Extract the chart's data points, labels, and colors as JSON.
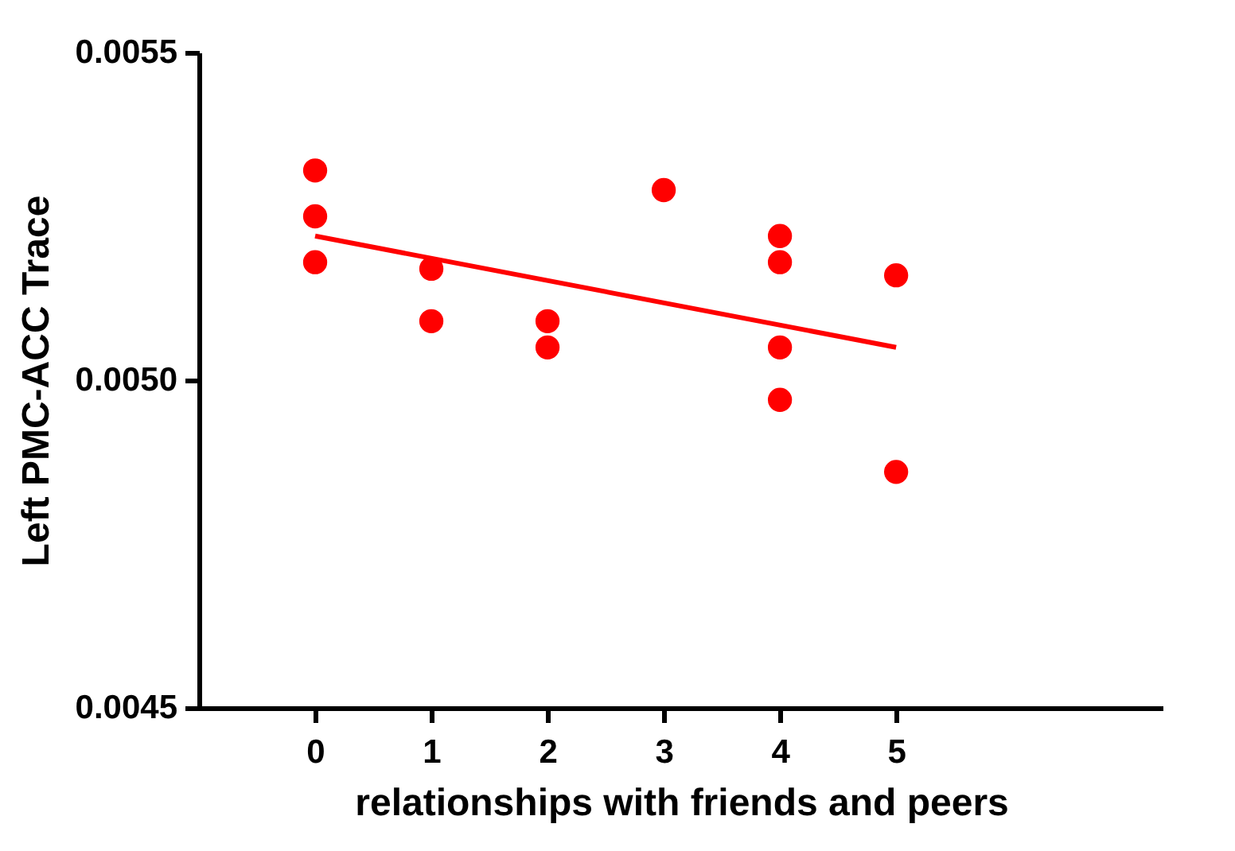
{
  "chart_data": {
    "type": "scatter",
    "xlabel": "relationships with friends and peers",
    "ylabel": "Left PMC-ACC Trace",
    "xlim": [
      -1,
      7.3
    ],
    "xticks": [
      0,
      1,
      2,
      3,
      4,
      5
    ],
    "ylim": [
      0.0045,
      0.0055
    ],
    "yticks": [
      {
        "value": 0.0045,
        "label": "0.0045"
      },
      {
        "value": 0.005,
        "label": "0.0050"
      },
      {
        "value": 0.0055,
        "label": "0.0055"
      }
    ],
    "grid": false,
    "line_style": "solid",
    "series": [
      {
        "color": "#ff0000",
        "marker": "circle",
        "x": [
          0,
          0,
          0,
          1,
          1,
          2,
          2,
          3,
          4,
          4,
          4,
          4,
          5,
          5
        ],
        "values": [
          0.00532,
          0.00525,
          0.00518,
          0.00517,
          0.00509,
          0.00509,
          0.00505,
          0.00529,
          0.00522,
          0.00518,
          0.00505,
          0.00497,
          0.00516,
          0.00486
        ]
      },
      {
        "type": "line",
        "color": "#ff0000",
        "x": [
          0,
          5
        ],
        "values": [
          0.00522,
          0.00505
        ]
      }
    ]
  }
}
